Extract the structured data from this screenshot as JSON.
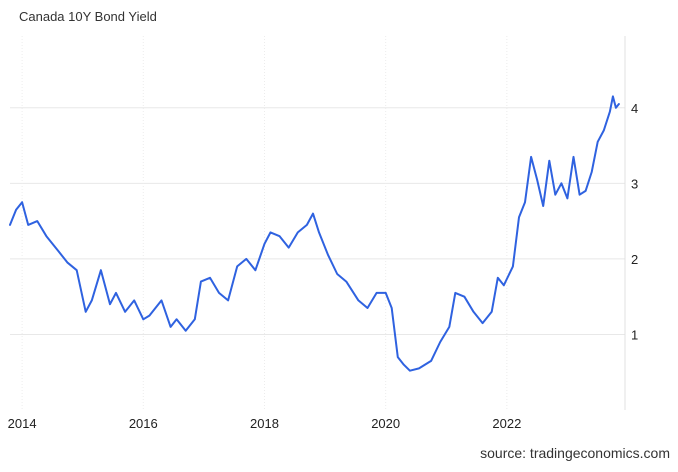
{
  "chart_data": {
    "type": "line",
    "title": "Canada 10Y Bond Yield",
    "source": "source: tradingeconomics.com",
    "x_ticks": [
      "2014",
      "2016",
      "2018",
      "2020",
      "2022"
    ],
    "y_ticks": [
      "1",
      "2",
      "3",
      "4"
    ],
    "xlim": [
      2013.8,
      2023.95
    ],
    "ylim": [
      0,
      4.95
    ],
    "grid": true,
    "y_axis_side": "right",
    "line_color": "#2f62e0",
    "series": [
      {
        "x": [
          2013.8,
          2013.9,
          2014.0,
          2014.1,
          2014.25,
          2014.4,
          2014.6,
          2014.75,
          2014.9,
          2015.05,
          2015.15,
          2015.3,
          2015.45,
          2015.55,
          2015.7,
          2015.85,
          2016.0,
          2016.1,
          2016.3,
          2016.45,
          2016.55,
          2016.7,
          2016.85,
          2016.95,
          2017.1,
          2017.25,
          2017.4,
          2017.55,
          2017.7,
          2017.85,
          2018.0,
          2018.1,
          2018.25,
          2018.4,
          2018.55,
          2018.7,
          2018.8,
          2018.9,
          2019.05,
          2019.2,
          2019.35,
          2019.55,
          2019.7,
          2019.85,
          2020.0,
          2020.1,
          2020.2,
          2020.3,
          2020.4,
          2020.55,
          2020.75,
          2020.9,
          2021.05,
          2021.15,
          2021.3,
          2021.45,
          2021.6,
          2021.75,
          2021.85,
          2021.95,
          2022.1,
          2022.2,
          2022.3,
          2022.4,
          2022.5,
          2022.6,
          2022.7,
          2022.8,
          2022.9,
          2023.0,
          2023.1,
          2023.2,
          2023.3,
          2023.4,
          2023.5,
          2023.6,
          2023.7,
          2023.75,
          2023.8,
          2023.85
        ],
        "y": [
          2.45,
          2.65,
          2.75,
          2.45,
          2.5,
          2.3,
          2.1,
          1.95,
          1.85,
          1.3,
          1.45,
          1.85,
          1.4,
          1.55,
          1.3,
          1.45,
          1.2,
          1.25,
          1.45,
          1.1,
          1.2,
          1.05,
          1.2,
          1.7,
          1.75,
          1.55,
          1.45,
          1.9,
          2.0,
          1.85,
          2.2,
          2.35,
          2.3,
          2.15,
          2.35,
          2.45,
          2.6,
          2.35,
          2.05,
          1.8,
          1.7,
          1.45,
          1.35,
          1.55,
          1.55,
          1.35,
          0.7,
          0.6,
          0.52,
          0.55,
          0.65,
          0.9,
          1.1,
          1.55,
          1.5,
          1.3,
          1.15,
          1.3,
          1.75,
          1.65,
          1.9,
          2.55,
          2.75,
          3.35,
          3.05,
          2.7,
          3.3,
          2.85,
          3.0,
          2.8,
          3.35,
          2.85,
          2.9,
          3.15,
          3.55,
          3.7,
          3.95,
          4.15,
          4.0,
          4.05
        ]
      }
    ]
  }
}
